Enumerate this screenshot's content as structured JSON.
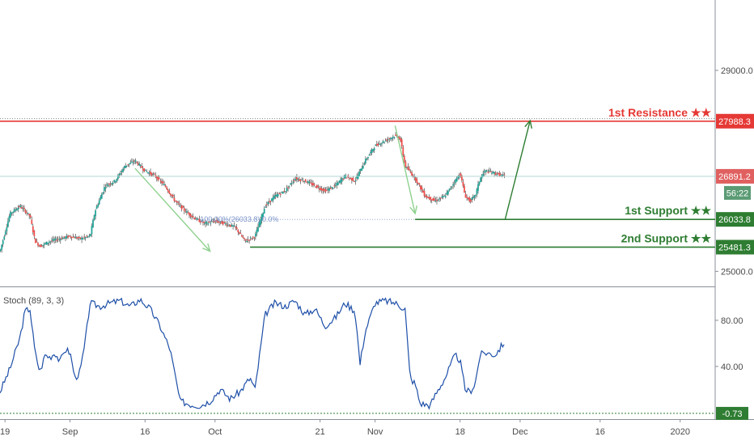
{
  "chart_data": {
    "type": "candlestick",
    "price_axis": {
      "ticks": [
        "29000.0",
        "25000.0"
      ],
      "range": [
        24700,
        30400
      ]
    },
    "time_axis": {
      "ticks": [
        {
          "label": "19",
          "day": 0
        },
        {
          "label": "Sep",
          "day": 13
        },
        {
          "label": "16",
          "day": 28
        },
        {
          "label": "Oct",
          "day": 42
        },
        {
          "label": "21",
          "day": 63
        },
        {
          "label": "Nov",
          "day": 74
        },
        {
          "label": "18",
          "day": 91
        },
        {
          "label": "Dec",
          "day": 103
        },
        {
          "label": "16",
          "day": 119
        },
        {
          "label": "2020",
          "day": 135
        }
      ],
      "range": [
        -1,
        142
      ]
    },
    "price_path": [
      {
        "d": -1,
        "p": 25400
      },
      {
        "d": 1,
        "p": 26150
      },
      {
        "d": 3,
        "p": 26300
      },
      {
        "d": 5,
        "p": 26100
      },
      {
        "d": 6,
        "p": 25600
      },
      {
        "d": 7,
        "p": 25500
      },
      {
        "d": 9,
        "p": 25600
      },
      {
        "d": 11,
        "p": 25650
      },
      {
        "d": 13,
        "p": 25700
      },
      {
        "d": 15,
        "p": 25650
      },
      {
        "d": 17,
        "p": 25700
      },
      {
        "d": 18,
        "p": 26200
      },
      {
        "d": 20,
        "p": 26700
      },
      {
        "d": 22,
        "p": 26800
      },
      {
        "d": 24,
        "p": 27100
      },
      {
        "d": 26,
        "p": 27200
      },
      {
        "d": 28,
        "p": 27000
      },
      {
        "d": 30,
        "p": 26900
      },
      {
        "d": 32,
        "p": 26700
      },
      {
        "d": 34,
        "p": 26400
      },
      {
        "d": 36,
        "p": 26200
      },
      {
        "d": 38,
        "p": 26050
      },
      {
        "d": 40,
        "p": 25950
      },
      {
        "d": 42,
        "p": 26000
      },
      {
        "d": 44,
        "p": 25950
      },
      {
        "d": 46,
        "p": 25880
      },
      {
        "d": 48,
        "p": 25600
      },
      {
        "d": 50,
        "p": 25700
      },
      {
        "d": 52,
        "p": 26300
      },
      {
        "d": 54,
        "p": 26500
      },
      {
        "d": 56,
        "p": 26600
      },
      {
        "d": 58,
        "p": 26850
      },
      {
        "d": 60,
        "p": 26800
      },
      {
        "d": 62,
        "p": 26700
      },
      {
        "d": 64,
        "p": 26600
      },
      {
        "d": 66,
        "p": 26700
      },
      {
        "d": 68,
        "p": 26900
      },
      {
        "d": 70,
        "p": 26800
      },
      {
        "d": 72,
        "p": 27200
      },
      {
        "d": 74,
        "p": 27500
      },
      {
        "d": 76,
        "p": 27600
      },
      {
        "d": 78,
        "p": 27700
      },
      {
        "d": 79,
        "p": 27650
      },
      {
        "d": 80,
        "p": 27100
      },
      {
        "d": 82,
        "p": 26850
      },
      {
        "d": 84,
        "p": 26500
      },
      {
        "d": 86,
        "p": 26400
      },
      {
        "d": 88,
        "p": 26500
      },
      {
        "d": 90,
        "p": 26800
      },
      {
        "d": 91,
        "p": 26950
      },
      {
        "d": 92,
        "p": 26500
      },
      {
        "d": 93,
        "p": 26400
      },
      {
        "d": 94,
        "p": 26500
      },
      {
        "d": 95,
        "p": 26850
      },
      {
        "d": 96,
        "p": 27000
      },
      {
        "d": 98,
        "p": 26950
      },
      {
        "d": 100,
        "p": 26891.2
      }
    ],
    "levels": [
      {
        "label": "1st Resistance ★★",
        "value": 27988.3,
        "tag": "27988.3"
      },
      {
        "label": "1st Support ★★",
        "value": 26033.8,
        "tag": "26033.8"
      },
      {
        "label": "2nd Support ★★",
        "value": 25481.3,
        "tag": "25481.3"
      }
    ],
    "last_price": {
      "value": 26891.2,
      "tag": "26891.2",
      "countdown": "56:22"
    },
    "annotations": {
      "fib_text": "100.00%(26033.8) 0.0%",
      "arrows": [
        {
          "from": {
            "d": 26,
            "p": 27050
          },
          "to": {
            "d": 41,
            "p": 25400
          },
          "color": "#8fd18f"
        },
        {
          "from": {
            "d": 78,
            "p": 27900
          },
          "to": {
            "d": 82,
            "p": 26150
          },
          "color": "#8fd18f"
        },
        {
          "from": {
            "d": 100,
            "p": 26033.8
          },
          "to": {
            "d": 105,
            "p": 28000
          },
          "color": "#2e7d32"
        }
      ]
    },
    "stochastic": {
      "title": "Stoch (89, 3, 3)",
      "ticks": [
        "80.00",
        "40.00"
      ],
      "range": [
        -5,
        108
      ],
      "last_value_tag": "-0.73",
      "baseline_value": -0.73,
      "series": [
        {
          "d": -1,
          "v": 18
        },
        {
          "d": 1,
          "v": 38
        },
        {
          "d": 3,
          "v": 65
        },
        {
          "d": 4,
          "v": 88
        },
        {
          "d": 5,
          "v": 90
        },
        {
          "d": 6,
          "v": 52
        },
        {
          "d": 7,
          "v": 35
        },
        {
          "d": 8,
          "v": 50
        },
        {
          "d": 9,
          "v": 48
        },
        {
          "d": 10,
          "v": 52
        },
        {
          "d": 11,
          "v": 44
        },
        {
          "d": 12,
          "v": 55
        },
        {
          "d": 13,
          "v": 52
        },
        {
          "d": 14,
          "v": 30
        },
        {
          "d": 15,
          "v": 35
        },
        {
          "d": 16,
          "v": 60
        },
        {
          "d": 17,
          "v": 95
        },
        {
          "d": 19,
          "v": 92
        },
        {
          "d": 21,
          "v": 95
        },
        {
          "d": 23,
          "v": 97
        },
        {
          "d": 25,
          "v": 92
        },
        {
          "d": 27,
          "v": 98
        },
        {
          "d": 29,
          "v": 90
        },
        {
          "d": 31,
          "v": 75
        },
        {
          "d": 33,
          "v": 55
        },
        {
          "d": 35,
          "v": 10
        },
        {
          "d": 37,
          "v": 7
        },
        {
          "d": 39,
          "v": 6
        },
        {
          "d": 41,
          "v": 10
        },
        {
          "d": 43,
          "v": 20
        },
        {
          "d": 45,
          "v": 12
        },
        {
          "d": 47,
          "v": 18
        },
        {
          "d": 49,
          "v": 30
        },
        {
          "d": 50,
          "v": 20
        },
        {
          "d": 52,
          "v": 85
        },
        {
          "d": 54,
          "v": 95
        },
        {
          "d": 56,
          "v": 92
        },
        {
          "d": 58,
          "v": 97
        },
        {
          "d": 60,
          "v": 85
        },
        {
          "d": 62,
          "v": 90
        },
        {
          "d": 64,
          "v": 75
        },
        {
          "d": 66,
          "v": 82
        },
        {
          "d": 68,
          "v": 95
        },
        {
          "d": 70,
          "v": 88
        },
        {
          "d": 71,
          "v": 42
        },
        {
          "d": 72,
          "v": 70
        },
        {
          "d": 74,
          "v": 95
        },
        {
          "d": 76,
          "v": 97
        },
        {
          "d": 78,
          "v": 95
        },
        {
          "d": 80,
          "v": 90
        },
        {
          "d": 81,
          "v": 30
        },
        {
          "d": 82,
          "v": 25
        },
        {
          "d": 83,
          "v": 8
        },
        {
          "d": 85,
          "v": 6
        },
        {
          "d": 86,
          "v": 15
        },
        {
          "d": 88,
          "v": 30
        },
        {
          "d": 90,
          "v": 50
        },
        {
          "d": 91,
          "v": 45
        },
        {
          "d": 92,
          "v": 20
        },
        {
          "d": 93,
          "v": 18
        },
        {
          "d": 94,
          "v": 25
        },
        {
          "d": 95,
          "v": 50
        },
        {
          "d": 96,
          "v": 52
        },
        {
          "d": 98,
          "v": 50
        },
        {
          "d": 100,
          "v": 62
        }
      ]
    },
    "colors": {
      "up": "#26a69a",
      "down": "#ef5350",
      "resistance": "#e53935",
      "support": "#2e7d32",
      "stoch_line": "#1e4fa8",
      "last_price": "#e06060",
      "countdown": "#5b9b74",
      "grid": "#cfd3dc"
    }
  }
}
